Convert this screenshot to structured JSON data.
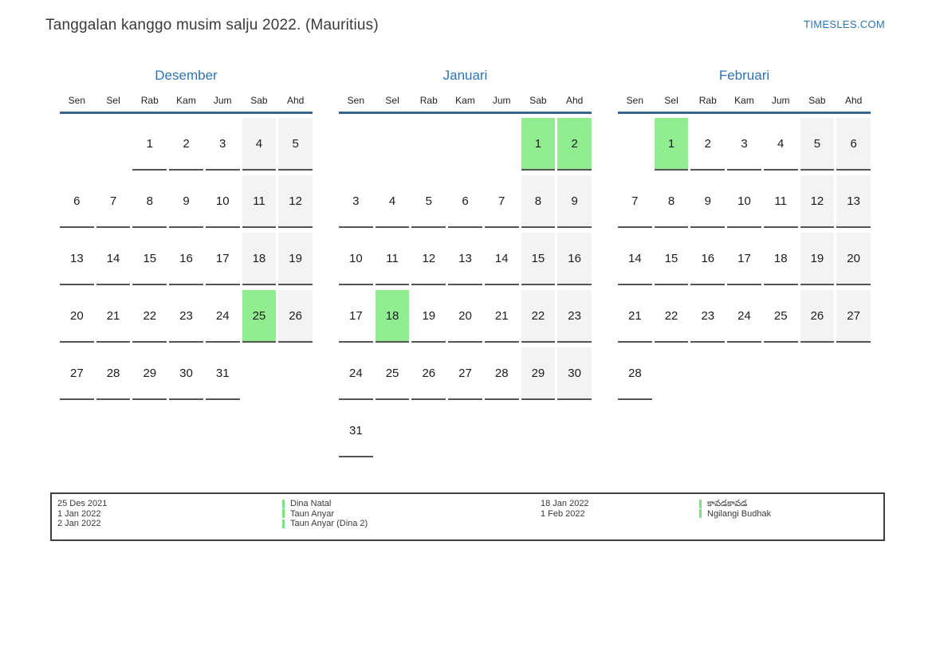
{
  "page": {
    "title": "Tanggalan kanggo musim salju 2022. (Mauritius)",
    "site": "TIMESLES.COM"
  },
  "weekdays": [
    "Sen",
    "Sel",
    "Rab",
    "Kam",
    "Jum",
    "Sab",
    "Ahd"
  ],
  "months": [
    {
      "name": "Desember",
      "weeks": [
        [
          0,
          0,
          1,
          2,
          3,
          4,
          5
        ],
        [
          6,
          7,
          8,
          9,
          10,
          11,
          12
        ],
        [
          13,
          14,
          15,
          16,
          17,
          18,
          19
        ],
        [
          20,
          21,
          22,
          23,
          24,
          25,
          26
        ],
        [
          27,
          28,
          29,
          30,
          31,
          0,
          0
        ]
      ],
      "highlighted": [
        25
      ]
    },
    {
      "name": "Januari",
      "weeks": [
        [
          0,
          0,
          0,
          0,
          0,
          1,
          2
        ],
        [
          3,
          4,
          5,
          6,
          7,
          8,
          9
        ],
        [
          10,
          11,
          12,
          13,
          14,
          15,
          16
        ],
        [
          17,
          18,
          19,
          20,
          21,
          22,
          23
        ],
        [
          24,
          25,
          26,
          27,
          28,
          29,
          30
        ],
        [
          31,
          0,
          0,
          0,
          0,
          0,
          0
        ]
      ],
      "highlighted": [
        1,
        2,
        18
      ]
    },
    {
      "name": "Februari",
      "weeks": [
        [
          0,
          1,
          2,
          3,
          4,
          5,
          6
        ],
        [
          7,
          8,
          9,
          10,
          11,
          12,
          13
        ],
        [
          14,
          15,
          16,
          17,
          18,
          19,
          20
        ],
        [
          21,
          22,
          23,
          24,
          25,
          26,
          27
        ],
        [
          28,
          0,
          0,
          0,
          0,
          0,
          0
        ]
      ],
      "highlighted": [
        1
      ]
    }
  ],
  "legend": {
    "groups": [
      {
        "dates": [
          "25 Des 2021",
          "1 Jan 2022",
          "2 Jan 2022"
        ],
        "events": [
          "Dina Natal",
          "Taun Anyar",
          "Taun Anyar (Dina 2)"
        ]
      },
      {
        "dates": [
          "18 Jan 2022",
          "1 Feb 2022"
        ],
        "events": [
          "కావడకావడ",
          "Ngilangi Budhak"
        ]
      }
    ]
  },
  "colors": {
    "accent": "#2e74b5",
    "header_line": "#3b6492",
    "holiday_green": "#90ee90",
    "weekend_gray": "#f3f3f3",
    "underline_gray": "#555555",
    "legend_marker_green": "#7ee07e"
  }
}
